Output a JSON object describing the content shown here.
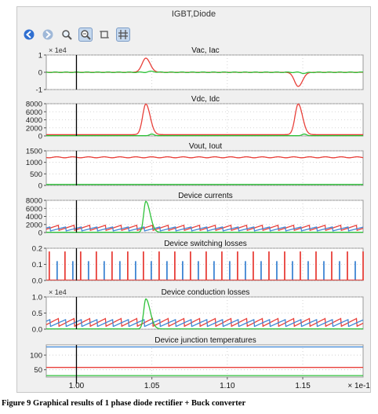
{
  "window": {
    "title": "IGBT,Diode"
  },
  "toolbar": [
    {
      "icon": "back-arrow-icon"
    },
    {
      "icon": "forward-arrow-icon"
    },
    {
      "icon": "zoom-icon"
    },
    {
      "icon": "zoom-fit-icon"
    },
    {
      "icon": "crop-icon"
    },
    {
      "icon": "axis-settings-icon"
    }
  ],
  "colors": {
    "red": "#e8403a",
    "green": "#2fc23a",
    "blue": "#3f86d4",
    "frame": "#f0f0f0"
  },
  "chart_data": [
    {
      "type": "line",
      "title": "Vac, Iac",
      "ylim": [
        -1,
        1
      ],
      "yticks": [
        "1",
        "0",
        "-1"
      ],
      "multiplier": "× 1e4",
      "series": [
        {
          "color": "red",
          "values": "ac-voltage: 0, positive pulse ~0.8 at t=1.046, negative pulse ~-0.8 at t=1.147"
        },
        {
          "color": "green",
          "values": "ac-current: ~0 with small spikes near pulses"
        }
      ]
    },
    {
      "type": "line",
      "title": "Vdc, Idc",
      "ylim": [
        0,
        8000
      ],
      "yticks": [
        "8000",
        "6000",
        "4000",
        "2000",
        "0"
      ],
      "series": [
        {
          "color": "red",
          "values": "dc-voltage: ~300 baseline, peaks ~7900 at t=1.046 and t=1.147"
        },
        {
          "color": "green",
          "values": "dc-current: ~0"
        }
      ]
    },
    {
      "type": "line",
      "title": "Vout, Iout",
      "ylim": [
        0,
        1500
      ],
      "yticks": [
        "1500",
        "1000",
        "500",
        "0"
      ],
      "series": [
        {
          "color": "red",
          "values": "output-voltage: ~1220 flat"
        },
        {
          "color": "green",
          "values": "output-current: ~50"
        }
      ]
    },
    {
      "type": "line",
      "title": "Device currents",
      "ylim": [
        0,
        8000
      ],
      "yticks": [
        "8000",
        "6000",
        "4000",
        "2000",
        "0"
      ],
      "series": [
        {
          "color": "red",
          "values": "sawtooth 500-1800"
        },
        {
          "color": "green",
          "values": "spike ~7800 at t=1.046"
        },
        {
          "color": "blue",
          "values": "sawtooth 500-1400"
        }
      ]
    },
    {
      "type": "line",
      "title": "Device switching losses",
      "ylim": [
        0,
        0.2
      ],
      "yticks": [
        "0.2",
        "0.1",
        "0.0"
      ],
      "series": [
        {
          "color": "red",
          "values": "spikes ~0.18"
        },
        {
          "color": "blue",
          "values": "spikes ~0.12"
        }
      ]
    },
    {
      "type": "line",
      "title": "Device conduction losses",
      "ylim": [
        0,
        1
      ],
      "yticks": [
        "1.0",
        "0.5",
        "0.0"
      ],
      "multiplier": "× 1e4",
      "series": [
        {
          "color": "red",
          "values": "sawtooth 0.1-0.35"
        },
        {
          "color": "green",
          "values": "spike ~0.95 at t=1.046"
        },
        {
          "color": "blue",
          "values": "sawtooth 0.1-0.3"
        }
      ]
    },
    {
      "type": "line",
      "title": "Device junction temperatures",
      "ylim": [
        25,
        135
      ],
      "yticks": [
        "100",
        "50"
      ],
      "series": [
        {
          "color": "blue",
          "values": "~128 flat"
        },
        {
          "color": "red",
          "values": "~58 flat"
        },
        {
          "color": "green",
          "values": "~30 flat"
        }
      ]
    }
  ],
  "x_axis": {
    "ticks": [
      "1.00",
      "1.05",
      "1.10",
      "1.15"
    ],
    "multiplier": "× 1e-1",
    "range": [
      0.98,
      1.19
    ]
  },
  "caption": "Figure 9 Graphical results of 1 phase diode rectifier + Buck converter"
}
